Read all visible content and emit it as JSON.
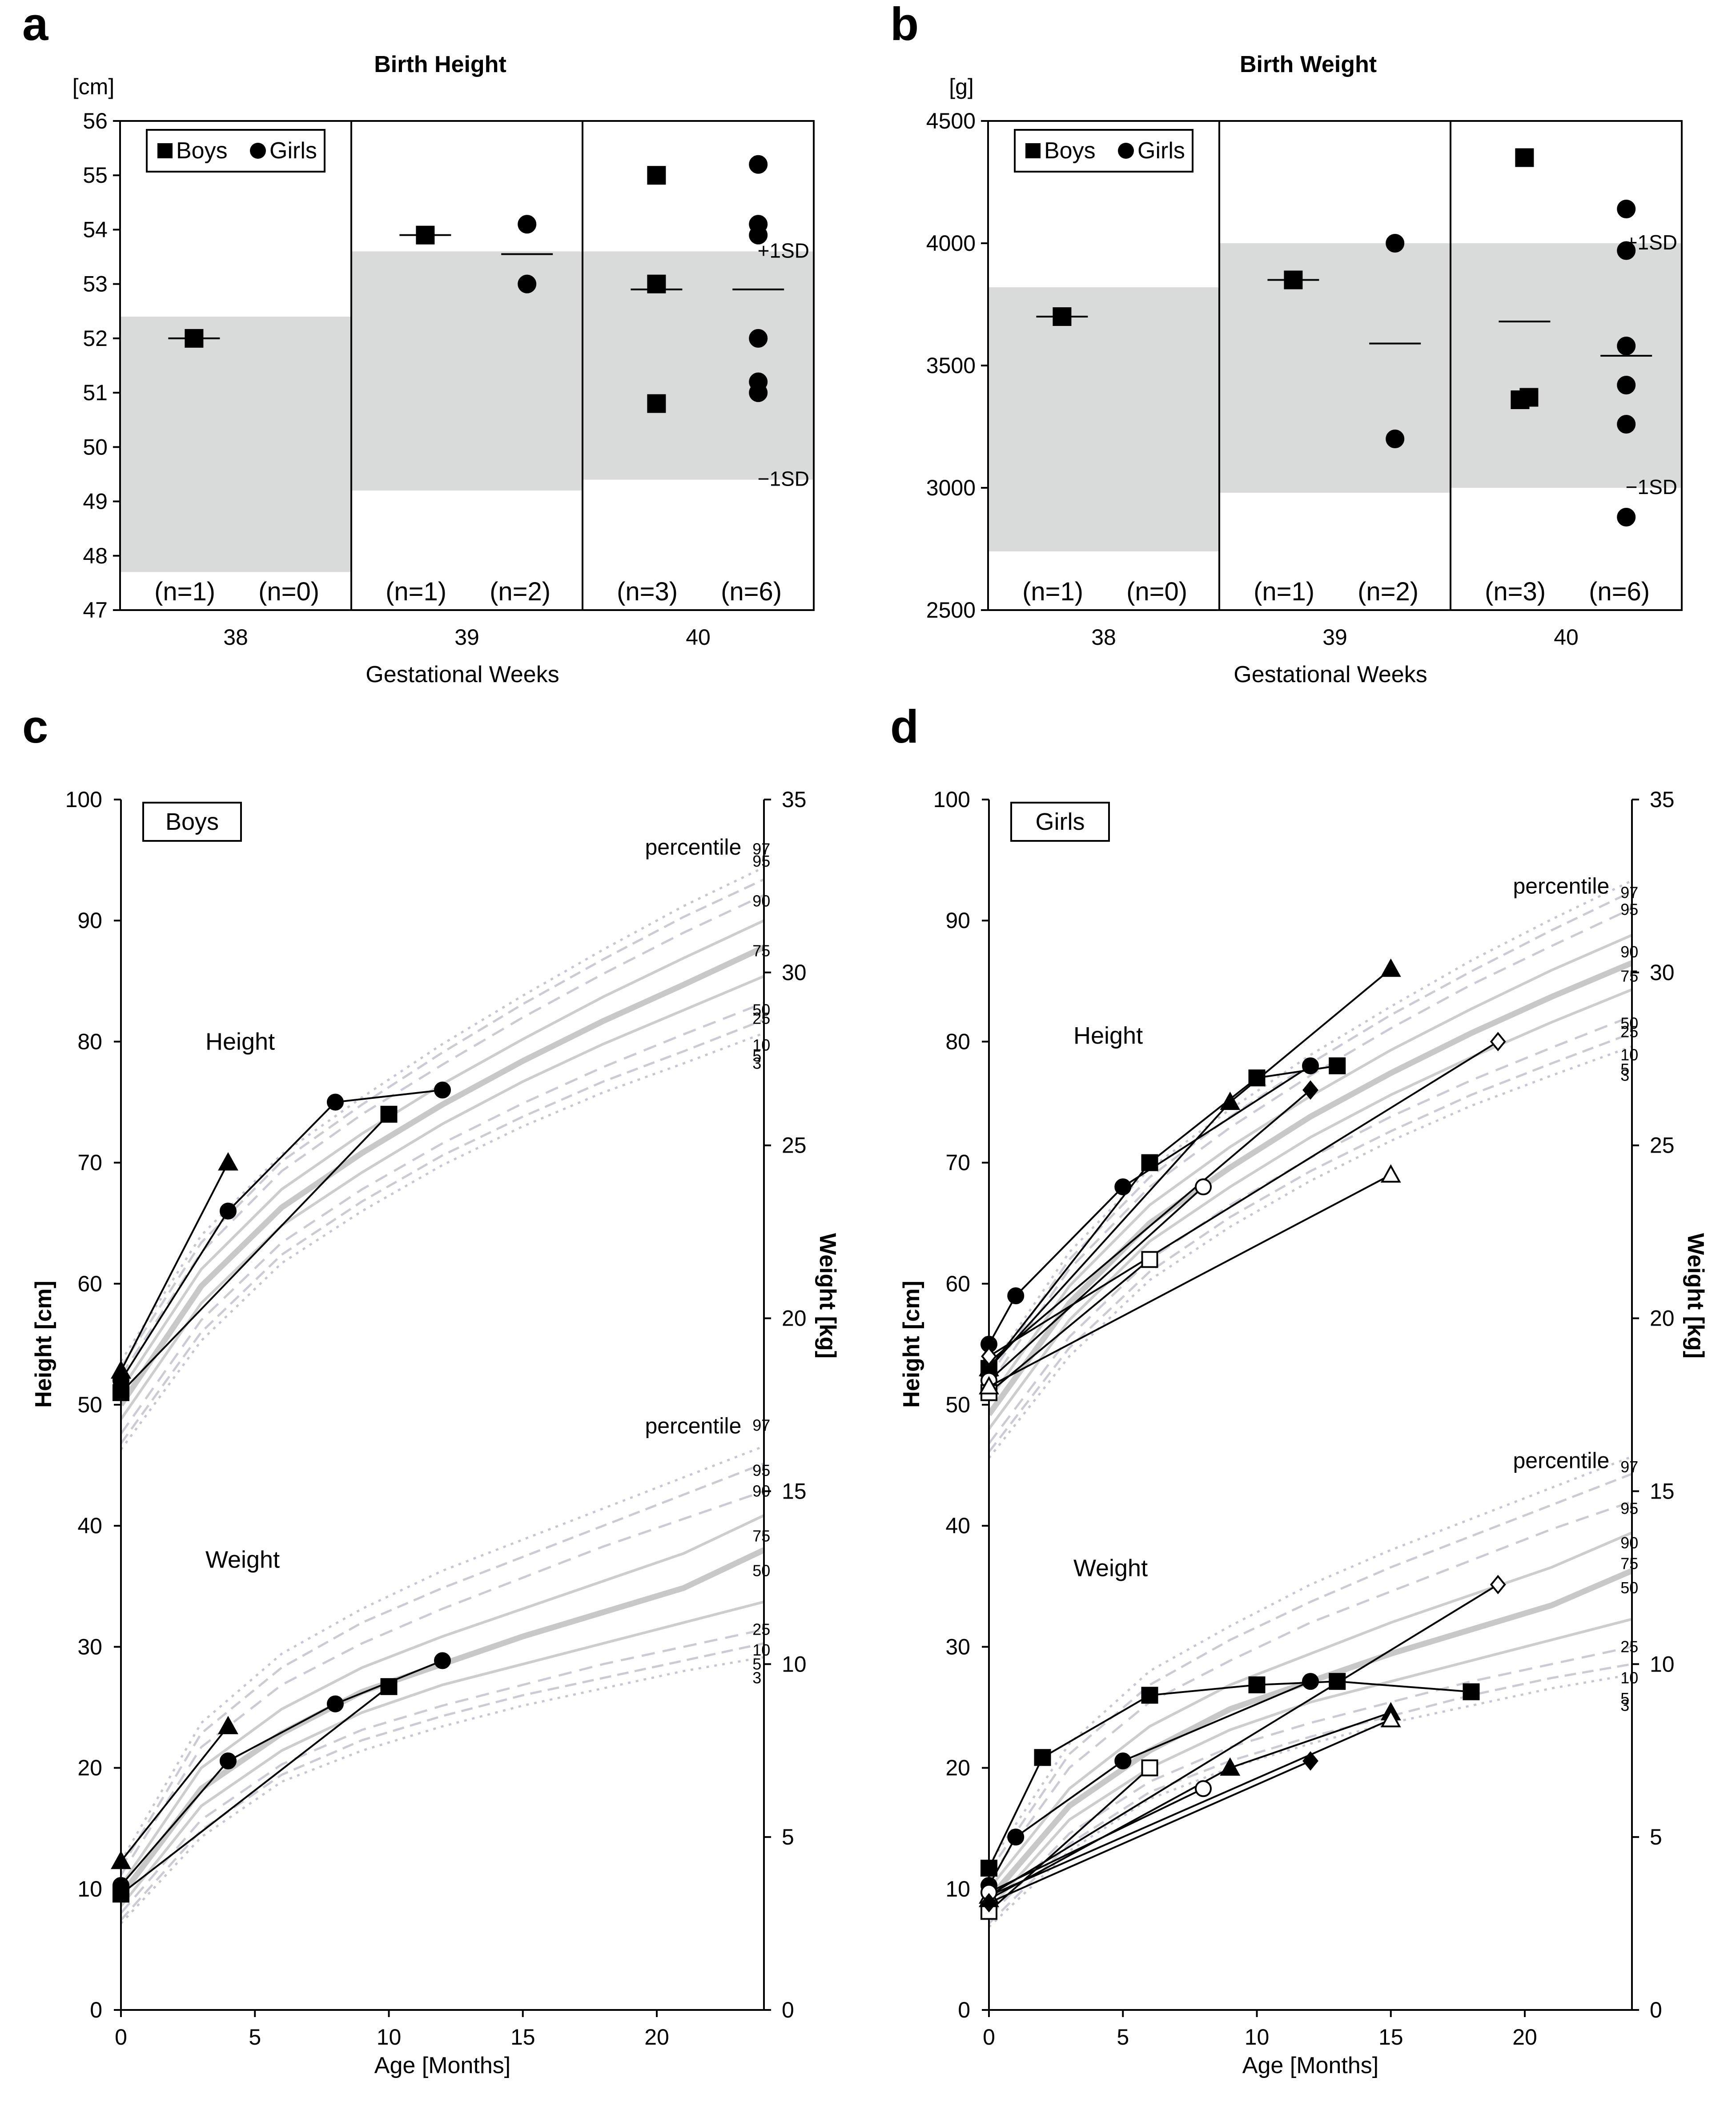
{
  "panels": {
    "a": {
      "letter": "a"
    },
    "b": {
      "letter": "b"
    },
    "c": {
      "letter": "c"
    },
    "d": {
      "letter": "d"
    }
  },
  "legend": {
    "boys": "Boys",
    "girls": "Girls"
  },
  "chart_data": [
    {
      "id": "a",
      "type": "scatter",
      "title": "Birth Height",
      "xlabel": "Gestational Weeks",
      "ylabel": "[cm]",
      "ylim": [
        47,
        56
      ],
      "yticks": [
        47,
        48,
        49,
        50,
        51,
        52,
        53,
        54,
        55,
        56
      ],
      "categories": [
        "38",
        "39",
        "40"
      ],
      "sd_bands": [
        [
          47.7,
          52.4
        ],
        [
          49.2,
          53.6
        ],
        [
          49.4,
          53.6
        ]
      ],
      "sd_labels": {
        "upper": "+1SD",
        "lower": "−1SD"
      },
      "counts": [
        [
          "(n=1)",
          "(n=0)"
        ],
        [
          "(n=1)",
          "(n=2)"
        ],
        [
          "(n=3)",
          "(n=6)"
        ]
      ],
      "series": [
        {
          "name": "Boys",
          "marker": "square",
          "values": [
            [
              52.0
            ],
            [
              53.9
            ],
            [
              55.0,
              53.0,
              50.8
            ]
          ],
          "means": [
            52.0,
            53.9,
            52.9
          ]
        },
        {
          "name": "Girls",
          "marker": "circle",
          "values": [
            [],
            [
              54.1,
              53.0
            ],
            [
              55.2,
              54.1,
              53.9,
              52.0,
              51.2,
              51.0
            ]
          ],
          "means": [
            null,
            53.55,
            52.9
          ]
        }
      ]
    },
    {
      "id": "b",
      "type": "scatter",
      "title": "Birth Weight",
      "xlabel": "Gestational Weeks",
      "ylabel": "[g]",
      "ylim": [
        2500,
        4500
      ],
      "yticks": [
        2500,
        3000,
        3500,
        4000,
        4500
      ],
      "categories": [
        "38",
        "39",
        "40"
      ],
      "sd_bands": [
        [
          2740,
          3820
        ],
        [
          2980,
          4000
        ],
        [
          3000,
          4000
        ]
      ],
      "sd_labels": {
        "upper": "+1SD",
        "lower": "−1SD"
      },
      "counts": [
        [
          "(n=1)",
          "(n=0)"
        ],
        [
          "(n=1)",
          "(n=2)"
        ],
        [
          "(n=3)",
          "(n=6)"
        ]
      ],
      "series": [
        {
          "name": "Boys",
          "marker": "square",
          "values": [
            [
              3700
            ],
            [
              3850
            ],
            [
              4350,
              3370,
              3360
            ]
          ],
          "means": [
            3700,
            3850,
            3680
          ]
        },
        {
          "name": "Girls",
          "marker": "circle",
          "values": [
            [],
            [
              4000,
              3200
            ],
            [
              4140,
              3970,
              3580,
              3420,
              3260,
              2880
            ]
          ],
          "means": [
            null,
            3590,
            3540
          ]
        }
      ]
    },
    {
      "id": "c",
      "type": "line",
      "box_label": "Boys",
      "xlabel": "Age [Months]",
      "ylabel": "Height [cm]",
      "y2label": "Weight [kg]",
      "xlim": [
        0,
        24
      ],
      "ylim": [
        0,
        100
      ],
      "y2lim": [
        0,
        35
      ],
      "xticks": [
        0,
        5,
        10,
        15,
        20
      ],
      "yticks": [
        0,
        10,
        20,
        30,
        40,
        50,
        60,
        70,
        80,
        90,
        100
      ],
      "y2ticks": [
        0,
        5,
        10,
        15,
        20,
        25,
        30,
        35
      ],
      "section_labels": {
        "height": "Height",
        "weight": "Weight"
      },
      "percentile_title": "percentile",
      "percentiles": [
        "97",
        "95",
        "90",
        "75",
        "50",
        "25",
        "10",
        "5",
        "3"
      ],
      "height_percentiles": {
        "x": [
          0,
          3,
          6,
          9,
          12,
          15,
          18,
          21,
          24
        ],
        "p3": [
          46.3,
          55.3,
          61.7,
          66.0,
          69.8,
          73.0,
          75.8,
          78.2,
          80.7
        ],
        "p5": [
          46.8,
          56.0,
          62.4,
          66.8,
          70.6,
          73.8,
          76.7,
          79.2,
          81.8
        ],
        "p10": [
          47.6,
          57.0,
          63.4,
          67.8,
          71.6,
          74.9,
          77.9,
          80.6,
          83.2
        ],
        "p25": [
          48.8,
          58.4,
          64.8,
          69.2,
          73.2,
          76.7,
          79.8,
          82.6,
          85.4
        ],
        "p50": [
          50.0,
          59.8,
          66.3,
          70.8,
          74.8,
          78.4,
          81.7,
          84.7,
          87.8
        ],
        "p75": [
          51.2,
          61.2,
          67.8,
          72.4,
          76.5,
          80.2,
          83.7,
          86.9,
          90.0
        ],
        "p90": [
          52.4,
          62.6,
          69.3,
          74.0,
          78.1,
          82.0,
          85.6,
          89.0,
          92.1
        ],
        "p95": [
          53.1,
          63.4,
          70.1,
          74.8,
          79.1,
          83.1,
          86.8,
          90.3,
          93.4
        ],
        "p97": [
          53.6,
          64.0,
          70.7,
          75.4,
          79.8,
          83.8,
          87.6,
          91.2,
          94.4
        ]
      },
      "weight_percentiles_kg": {
        "x": [
          0,
          3,
          6,
          9,
          12,
          15,
          18,
          21,
          24
        ],
        "p3": [
          2.5,
          5.0,
          6.6,
          7.5,
          8.2,
          8.8,
          9.3,
          9.8,
          10.2
        ],
        "p5": [
          2.6,
          5.2,
          6.8,
          7.8,
          8.5,
          9.1,
          9.6,
          10.1,
          10.6
        ],
        "p10": [
          2.8,
          5.5,
          7.1,
          8.1,
          8.8,
          9.4,
          10.0,
          10.5,
          11.0
        ],
        "p25": [
          3.0,
          5.9,
          7.5,
          8.6,
          9.4,
          10.0,
          10.6,
          11.2,
          11.8
        ],
        "p50": [
          3.3,
          6.4,
          8.0,
          9.2,
          10.0,
          10.8,
          11.5,
          12.2,
          13.3
        ],
        "p75": [
          3.6,
          7.0,
          8.7,
          9.9,
          10.8,
          11.6,
          12.4,
          13.2,
          14.3
        ],
        "p90": [
          3.9,
          7.6,
          9.4,
          10.6,
          11.6,
          12.5,
          13.4,
          14.2,
          15.0
        ],
        "p95": [
          4.1,
          8.0,
          9.9,
          11.2,
          12.2,
          13.1,
          14.0,
          14.9,
          15.8
        ],
        "p97": [
          4.3,
          8.3,
          10.3,
          11.6,
          12.7,
          13.6,
          14.5,
          15.4,
          16.3
        ]
      },
      "height_series": [
        {
          "marker": "triangle",
          "filled": true,
          "x": [
            0,
            4
          ],
          "y": [
            52.8,
            70.0
          ]
        },
        {
          "marker": "circle",
          "filled": true,
          "x": [
            0,
            4,
            8,
            12
          ],
          "y": [
            52.0,
            66.0,
            75.0,
            76.0
          ]
        },
        {
          "marker": "square",
          "filled": true,
          "x": [
            0,
            10
          ],
          "y": [
            51.0,
            74.0
          ]
        }
      ],
      "weight_series_kg": [
        {
          "marker": "triangle",
          "filled": true,
          "x": [
            0,
            4
          ],
          "y": [
            4.3,
            8.2
          ]
        },
        {
          "marker": "circle",
          "filled": true,
          "x": [
            0,
            4,
            8,
            12
          ],
          "y": [
            3.6,
            7.2,
            8.85,
            10.1
          ]
        },
        {
          "marker": "square",
          "filled": true,
          "x": [
            0,
            10
          ],
          "y": [
            3.35,
            9.35
          ]
        }
      ]
    },
    {
      "id": "d",
      "type": "line",
      "box_label": "Girls",
      "xlabel": "Age [Months]",
      "ylabel": "Height [cm]",
      "y2label": "Weight [kg]",
      "xlim": [
        0,
        24
      ],
      "ylim": [
        0,
        100
      ],
      "y2lim": [
        0,
        35
      ],
      "xticks": [
        0,
        5,
        10,
        15,
        20
      ],
      "yticks": [
        0,
        10,
        20,
        30,
        40,
        50,
        60,
        70,
        80,
        90,
        100
      ],
      "y2ticks": [
        0,
        5,
        10,
        15,
        20,
        25,
        30,
        35
      ],
      "section_labels": {
        "height": "Height",
        "weight": "Weight"
      },
      "percentile_title": "percentile",
      "percentiles": [
        "97",
        "95",
        "90",
        "75",
        "50",
        "25",
        "10",
        "5",
        "3"
      ],
      "height_percentiles": {
        "x": [
          0,
          3,
          6,
          9,
          12,
          15,
          18,
          21,
          24
        ],
        "p3": [
          45.6,
          54.0,
          60.3,
          64.7,
          68.5,
          71.8,
          74.7,
          77.2,
          79.6
        ],
        "p5": [
          46.1,
          54.7,
          61.0,
          65.5,
          69.3,
          72.6,
          75.6,
          78.2,
          80.7
        ],
        "p10": [
          46.8,
          55.6,
          62.0,
          66.5,
          70.4,
          73.8,
          76.8,
          79.5,
          82.1
        ],
        "p25": [
          48.0,
          57.0,
          63.5,
          68.0,
          72.1,
          75.6,
          78.7,
          81.6,
          84.3
        ],
        "p50": [
          49.2,
          58.4,
          65.0,
          69.6,
          73.8,
          77.4,
          80.7,
          83.7,
          86.5
        ],
        "p75": [
          50.4,
          59.8,
          66.5,
          71.3,
          75.5,
          79.3,
          82.7,
          85.9,
          88.8
        ],
        "p90": [
          51.6,
          61.2,
          68.0,
          72.9,
          77.2,
          81.1,
          84.7,
          87.9,
          91.0
        ],
        "p95": [
          52.3,
          62.0,
          68.8,
          73.8,
          78.2,
          82.2,
          85.8,
          89.2,
          92.4
        ],
        "p97": [
          52.8,
          62.6,
          69.5,
          74.4,
          78.9,
          82.9,
          86.7,
          90.1,
          93.3
        ]
      },
      "weight_percentiles_kg": {
        "x": [
          0,
          3,
          6,
          9,
          12,
          15,
          18,
          21,
          24
        ],
        "p3": [
          2.4,
          4.6,
          6.1,
          7.0,
          7.7,
          8.3,
          8.8,
          9.3,
          9.7
        ],
        "p5": [
          2.5,
          4.8,
          6.3,
          7.2,
          7.9,
          8.5,
          9.1,
          9.6,
          10.0
        ],
        "p10": [
          2.7,
          5.1,
          6.6,
          7.6,
          8.3,
          8.9,
          9.5,
          10.0,
          10.5
        ],
        "p25": [
          2.9,
          5.5,
          7.0,
          8.1,
          8.9,
          9.5,
          10.1,
          10.7,
          11.3
        ],
        "p50": [
          3.2,
          5.9,
          7.5,
          8.7,
          9.5,
          10.3,
          11.0,
          11.7,
          12.7
        ],
        "p75": [
          3.5,
          6.4,
          8.2,
          9.4,
          10.3,
          11.2,
          12.0,
          12.8,
          13.8
        ],
        "p90": [
          3.8,
          7.0,
          8.9,
          10.1,
          11.2,
          12.1,
          13.0,
          13.9,
          14.7
        ],
        "p95": [
          4.0,
          7.4,
          9.4,
          10.7,
          11.8,
          12.8,
          13.7,
          14.6,
          15.5
        ],
        "p97": [
          4.2,
          7.7,
          9.8,
          11.1,
          12.3,
          13.3,
          14.2,
          15.1,
          16.0
        ]
      },
      "height_series": [
        {
          "marker": "triangle",
          "filled": true,
          "x": [
            0,
            9,
            15
          ],
          "y": [
            53.0,
            75.0,
            86.0
          ]
        },
        {
          "marker": "circle",
          "filled": true,
          "x": [
            0,
            1,
            5,
            12
          ],
          "y": [
            55.0,
            59.0,
            68.0,
            78.0
          ]
        },
        {
          "marker": "square",
          "filled": true,
          "x": [
            0,
            6,
            10,
            13
          ],
          "y": [
            53.0,
            70.0,
            77.0,
            78.0
          ]
        },
        {
          "marker": "diamond",
          "filled": true,
          "x": [
            0,
            12
          ],
          "y": [
            53.5,
            76.0
          ]
        },
        {
          "marker": "diamond",
          "filled": false,
          "x": [
            0,
            19
          ],
          "y": [
            54.0,
            80.0
          ]
        },
        {
          "marker": "circle",
          "filled": false,
          "x": [
            0,
            8
          ],
          "y": [
            52.0,
            68.0
          ]
        },
        {
          "marker": "square",
          "filled": false,
          "x": [
            0,
            6
          ],
          "y": [
            51.0,
            62.0
          ]
        },
        {
          "marker": "triangle",
          "filled": false,
          "x": [
            0,
            15
          ],
          "y": [
            51.5,
            69.0
          ]
        }
      ],
      "weight_series_kg": [
        {
          "marker": "square",
          "filled": true,
          "x": [
            0,
            2,
            6,
            10,
            13,
            18
          ],
          "y": [
            4.1,
            7.3,
            9.1,
            9.4,
            9.5,
            9.2
          ]
        },
        {
          "marker": "circle",
          "filled": true,
          "x": [
            0,
            1,
            5,
            12
          ],
          "y": [
            3.6,
            5.0,
            7.2,
            9.5
          ]
        },
        {
          "marker": "diamond",
          "filled": false,
          "x": [
            0,
            19
          ],
          "y": [
            3.3,
            12.3
          ]
        },
        {
          "marker": "square",
          "filled": false,
          "x": [
            0,
            6
          ],
          "y": [
            2.85,
            7.0
          ]
        },
        {
          "marker": "triangle",
          "filled": true,
          "x": [
            0,
            9,
            15
          ],
          "y": [
            3.2,
            7.0,
            8.6
          ]
        },
        {
          "marker": "triangle",
          "filled": false,
          "x": [
            0,
            15
          ],
          "y": [
            3.3,
            8.4
          ]
        },
        {
          "marker": "circle",
          "filled": false,
          "x": [
            0,
            8
          ],
          "y": [
            3.4,
            6.4
          ]
        },
        {
          "marker": "diamond",
          "filled": true,
          "x": [
            0,
            12
          ],
          "y": [
            3.1,
            7.2
          ]
        }
      ]
    }
  ]
}
